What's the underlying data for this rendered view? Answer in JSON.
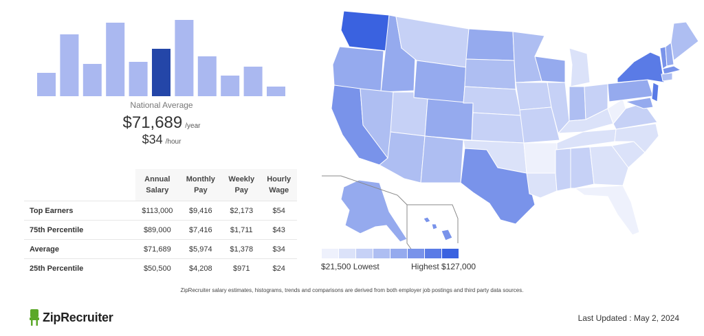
{
  "histogram": {
    "values": [
      34,
      90,
      47,
      107,
      50,
      69,
      111,
      58,
      30,
      43,
      14
    ],
    "highlight_index": 5,
    "colors": {
      "bar": "#aab8f0",
      "highlight": "#2446a8"
    }
  },
  "national": {
    "label": "National Average",
    "annual": "$71,689",
    "annual_unit": "/year",
    "hourly": "$34",
    "hourly_unit": "/hour"
  },
  "table": {
    "headers": [
      {
        "line1": "Annual",
        "line2": "Salary"
      },
      {
        "line1": "Monthly",
        "line2": "Pay"
      },
      {
        "line1": "Weekly",
        "line2": "Pay"
      },
      {
        "line1": "Hourly",
        "line2": "Wage"
      }
    ],
    "rows": [
      {
        "label": "Top Earners",
        "cells": [
          "$113,000",
          "$9,416",
          "$2,173",
          "$54"
        ]
      },
      {
        "label": "75th Percentile",
        "cells": [
          "$89,000",
          "$7,416",
          "$1,711",
          "$43"
        ]
      },
      {
        "label": "Average",
        "cells": [
          "$71,689",
          "$5,974",
          "$1,378",
          "$34"
        ]
      },
      {
        "label": "25th Percentile",
        "cells": [
          "$50,500",
          "$4,208",
          "$971",
          "$24"
        ]
      }
    ]
  },
  "map": {
    "legend_low": "$21,500 Lowest",
    "legend_high": "Highest $127,000",
    "legend_colors": [
      "#eef1fc",
      "#dbe2f9",
      "#c6d1f6",
      "#aebef2",
      "#95aaee",
      "#7993ea",
      "#5a7be6",
      "#3a62e0"
    ]
  },
  "footnote": "ZipRecruiter salary estimates, histograms, trends and comparisons are derived from both employer job postings and third party data sources.",
  "brand": {
    "name": "ZipRecruiter",
    "color": "#5ba829"
  },
  "last_updated": "Last Updated : May 2, 2024"
}
